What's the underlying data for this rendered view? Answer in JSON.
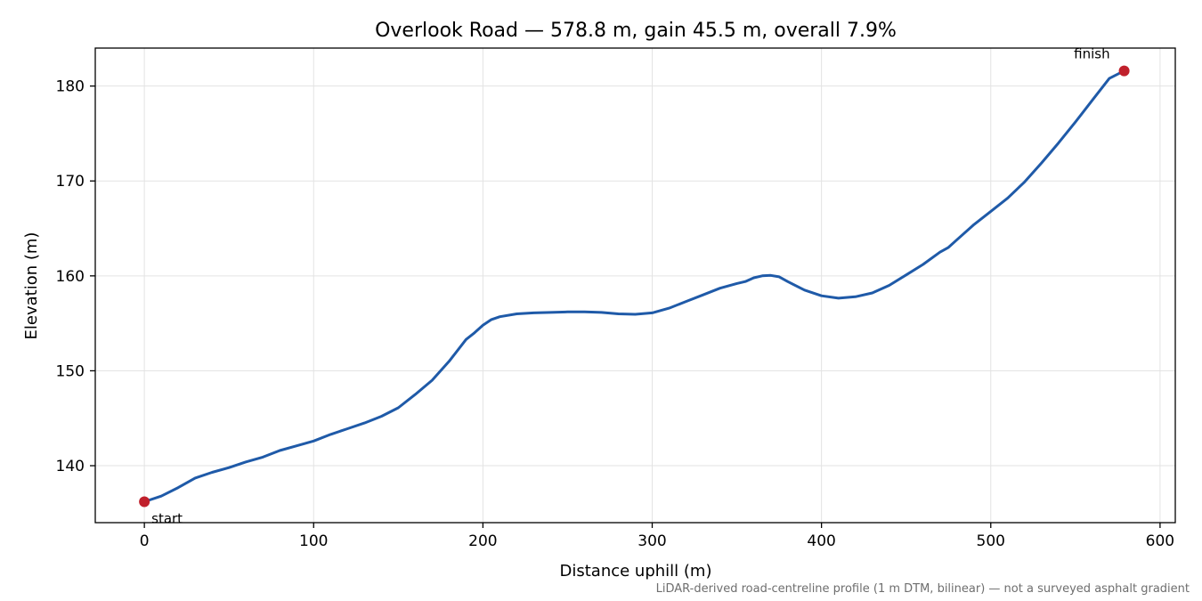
{
  "chart_data": {
    "type": "line",
    "title": "Overlook Road — 578.8 m, gain 45.5 m, overall 7.9%",
    "xlabel": "Distance uphill (m)",
    "ylabel": "Elevation (m)",
    "xlim": [
      -29,
      609
    ],
    "ylim": [
      134,
      184
    ],
    "xticks": [
      0,
      100,
      200,
      300,
      400,
      500,
      600
    ],
    "yticks": [
      140,
      150,
      160,
      170,
      180
    ],
    "grid": true,
    "line_color": "#1f5aa8",
    "marker_color": "#c0202c",
    "series": [
      {
        "x": [
          0,
          10,
          20,
          30,
          40,
          50,
          60,
          70,
          80,
          90,
          100,
          110,
          120,
          130,
          140,
          150,
          160,
          170,
          180,
          190,
          195,
          200,
          205,
          210,
          220,
          230,
          240,
          250,
          260,
          270,
          280,
          290,
          300,
          310,
          320,
          330,
          340,
          350,
          355,
          360,
          365,
          370,
          375,
          380,
          390,
          400,
          410,
          420,
          430,
          440,
          450,
          460,
          470,
          475,
          480,
          490,
          500,
          510,
          520,
          530,
          540,
          550,
          560,
          570,
          578.8
        ],
        "y": [
          136.2,
          136.8,
          137.7,
          138.7,
          139.3,
          139.8,
          140.4,
          140.9,
          141.6,
          142.1,
          142.6,
          143.3,
          143.9,
          144.5,
          145.2,
          146.1,
          147.5,
          149.0,
          151.0,
          153.3,
          154.0,
          154.8,
          155.4,
          155.7,
          156.0,
          156.1,
          156.15,
          156.2,
          156.2,
          156.15,
          156.0,
          155.95,
          156.1,
          156.6,
          157.3,
          158.0,
          158.7,
          159.2,
          159.4,
          159.8,
          160.0,
          160.05,
          159.9,
          159.4,
          158.5,
          157.9,
          157.65,
          157.8,
          158.2,
          159.0,
          160.1,
          161.2,
          162.5,
          163.0,
          163.8,
          165.4,
          166.8,
          168.2,
          169.9,
          171.9,
          174.0,
          176.2,
          178.5,
          180.8,
          181.6
        ]
      }
    ],
    "annotations": [
      {
        "label": "start",
        "x": 0,
        "y": 136.2
      },
      {
        "label": "finish",
        "x": 578.8,
        "y": 181.6
      }
    ],
    "footnote": "LiDAR-derived road-centreline profile (1 m DTM, bilinear) — not a surveyed asphalt gradient"
  }
}
